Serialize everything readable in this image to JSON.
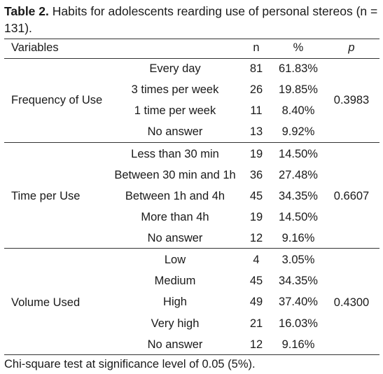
{
  "caption": {
    "label": "Table 2.",
    "text": " Habits for adolescents rearding use of personal stereos (n = 131)."
  },
  "headers": {
    "variables": "Variables",
    "n": "n",
    "pct": "%",
    "p": "p"
  },
  "groups": [
    {
      "name": "Frequency of Use",
      "p": "0.3983",
      "rows": [
        {
          "label": "Every day",
          "n": "81",
          "pct": "61.83%"
        },
        {
          "label": "3 times per week",
          "n": "26",
          "pct": "19.85%"
        },
        {
          "label": "1 time per week",
          "n": "11",
          "pct": "8.40%"
        },
        {
          "label": "No answer",
          "n": "13",
          "pct": "9.92%"
        }
      ]
    },
    {
      "name": "Time per Use",
      "p": "0.6607",
      "rows": [
        {
          "label": "Less than 30 min",
          "n": "19",
          "pct": "14.50%"
        },
        {
          "label": "Between 30 min and 1h",
          "n": "36",
          "pct": "27.48%"
        },
        {
          "label": "Between 1h and 4h",
          "n": "45",
          "pct": "34.35%"
        },
        {
          "label": "More than 4h",
          "n": "19",
          "pct": "14.50%"
        },
        {
          "label": "No answer",
          "n": "12",
          "pct": "9.16%"
        }
      ]
    },
    {
      "name": "Volume Used",
      "p": "0.4300",
      "rows": [
        {
          "label": "Low",
          "n": "4",
          "pct": "3.05%"
        },
        {
          "label": "Medium",
          "n": "45",
          "pct": "34.35%"
        },
        {
          "label": "High",
          "n": "49",
          "pct": "37.40%"
        },
        {
          "label": "Very high",
          "n": "21",
          "pct": "16.03%"
        },
        {
          "label": "No answer",
          "n": "12",
          "pct": "9.16%"
        }
      ]
    }
  ],
  "footnote": "Chi-square test at significance level of 0.05 (5%)."
}
